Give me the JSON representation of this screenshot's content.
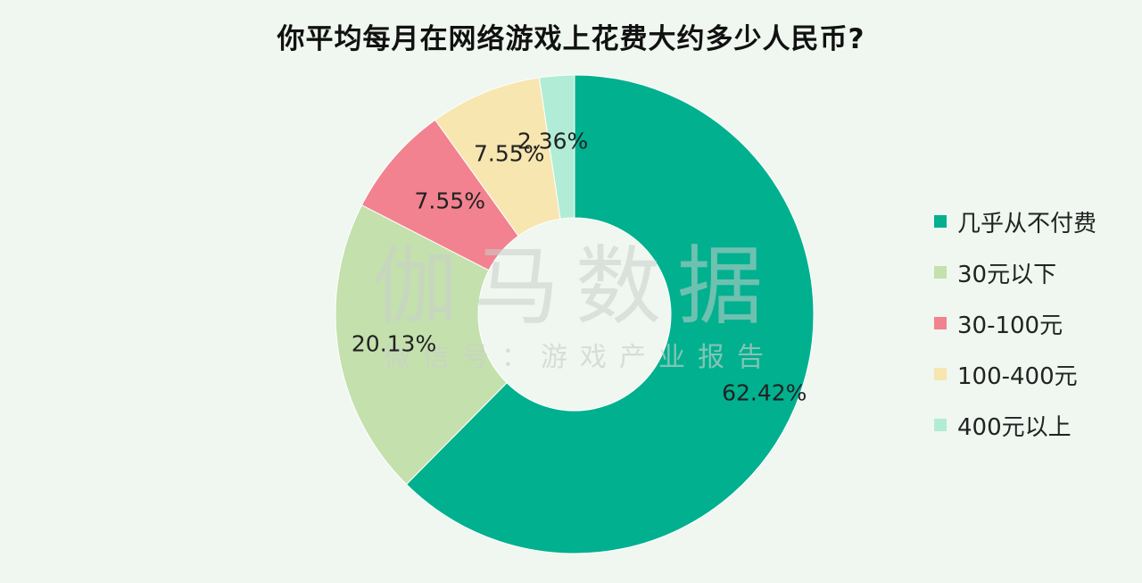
{
  "chart_data": {
    "type": "pie",
    "title": "你平均每月在网络游戏上花费大约多少人民币?",
    "categories": [
      "几乎从不付费",
      "30元以下",
      "30-100元",
      "100-400元",
      "400元以上"
    ],
    "values": [
      62.42,
      20.13,
      7.55,
      7.55,
      2.36
    ],
    "data_labels": [
      "62.42%",
      "20.13%",
      "7.55%",
      "7.55%",
      "2.36%"
    ],
    "colors": [
      "#00b08f",
      "#c4e0ad",
      "#f2828f",
      "#f7e6b0",
      "#b1ecd6"
    ],
    "legend_position": "right",
    "donut": true
  },
  "watermark": {
    "main": "伽马数据",
    "sub": "微信号：游戏产业报告"
  }
}
